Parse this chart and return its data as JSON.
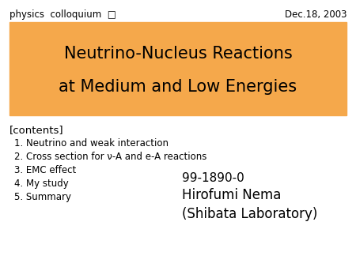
{
  "bg_color": "#ffffff",
  "header_left": "physics  colloquium  □",
  "header_right": "Dec.18, 2003",
  "title_line1": "Neutrino-Nucleus Reactions",
  "title_line2": "at Medium and Low Energies",
  "title_box_color": "#F5A84B",
  "contents_label": "[contents]",
  "items": [
    "1. Neutrino and weak interaction",
    "2. Cross section for ν-A and e-A reactions",
    "3. EMC effect",
    "4. My study",
    "5. Summary"
  ],
  "id_text": "99-1890-0",
  "author_line1": "Hirofumi Nema",
  "author_line2": "(Shibata Laboratory)",
  "header_fontsize": 8.5,
  "title_fontsize": 15,
  "contents_fontsize": 9.5,
  "items_fontsize": 8.5,
  "id_fontsize": 11,
  "author_fontsize": 12
}
